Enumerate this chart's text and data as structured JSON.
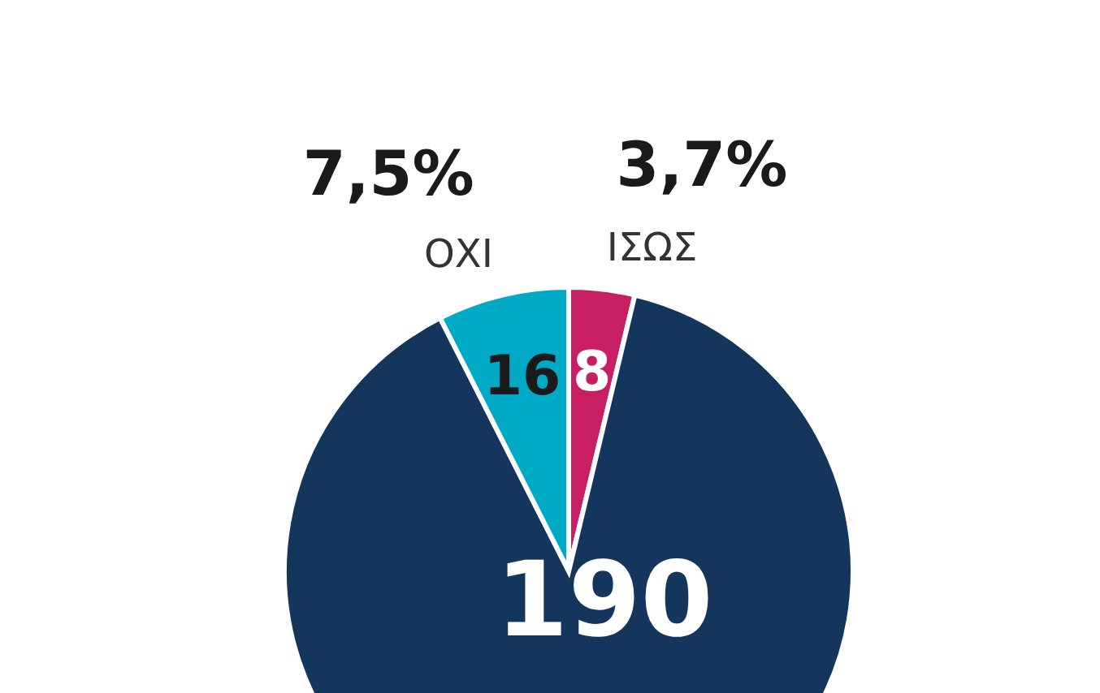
{
  "chart_data": {
    "type": "pie",
    "categories": [
      "ΟΧΙ",
      "ΙΣΩΣ",
      null
    ],
    "values": [
      16,
      8,
      190
    ],
    "colors": [
      "#00a9c6",
      "#c81f62",
      "#15365c"
    ],
    "data_labels": true,
    "annotations": [
      "7,5%",
      "3,7%"
    ]
  }
}
